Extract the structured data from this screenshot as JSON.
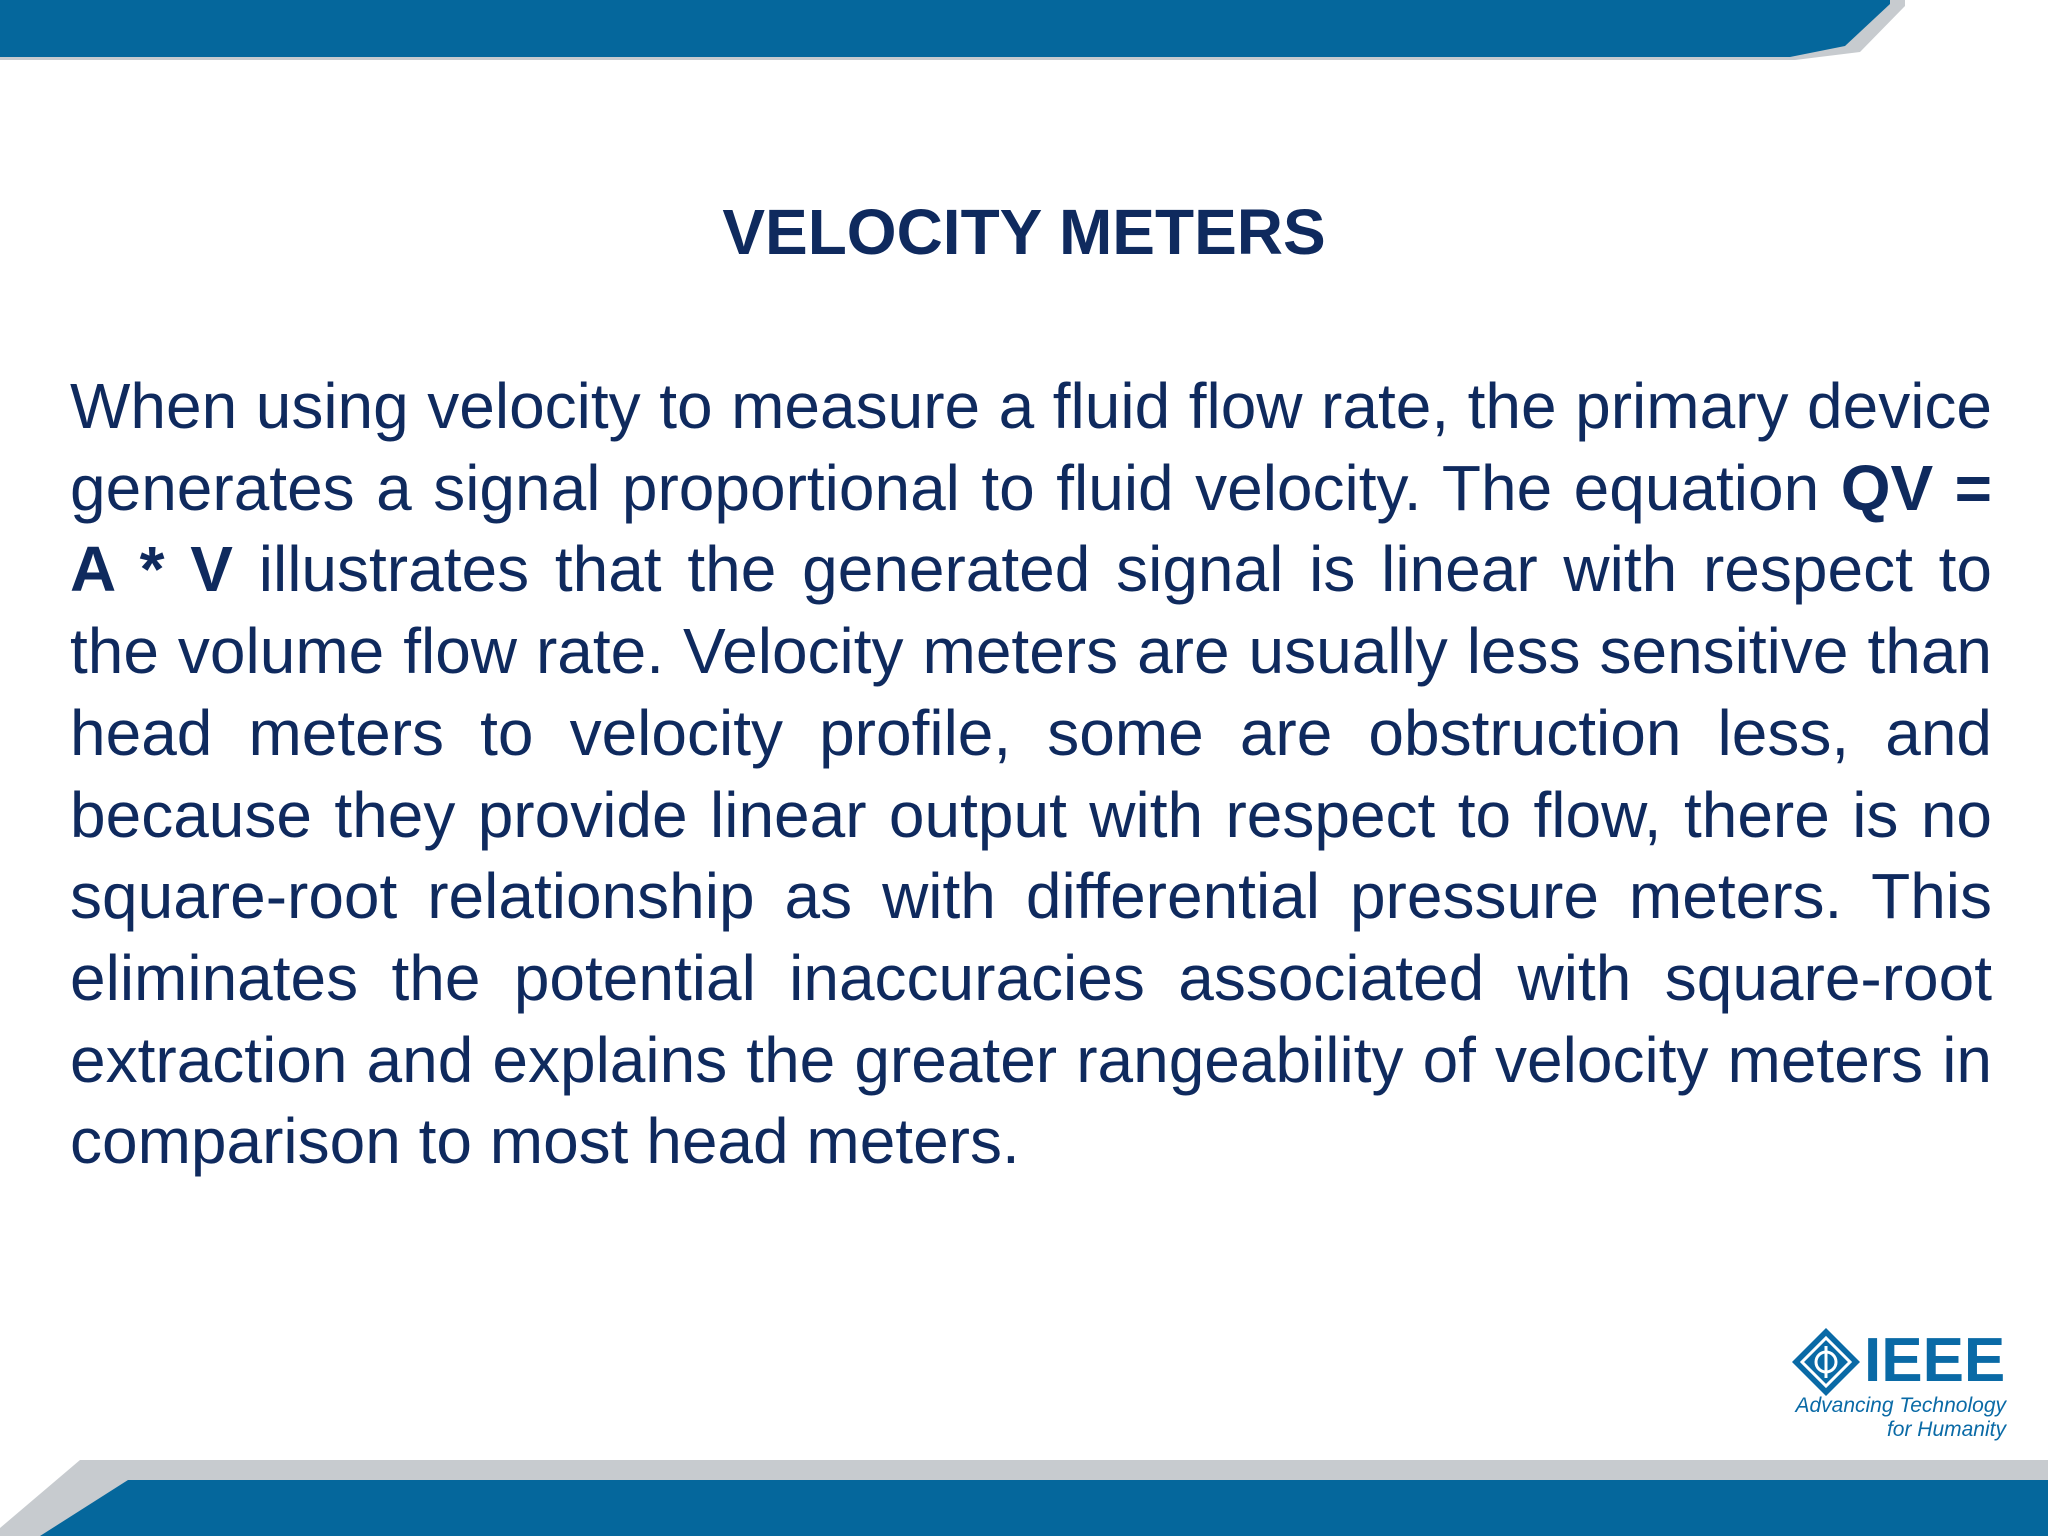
{
  "slide": {
    "title": "VELOCITY METERS",
    "body": {
      "before_equation": "When using velocity to measure a fluid flow rate, the primary device generates a signal proportional to fluid velocity. The equation ",
      "equation": "QV = A * V",
      "after_equation": " illustrates that the generated signal is linear with respect to the volume flow rate. Velocity meters are usually less sensitive than head meters to velocity profile, some are obstruction less, and because they provide linear output with respect to flow, there is no square-root relationship as with differential pressure meters. This eliminates the potential inaccuracies associated with square-root extraction and explains the greater rangeability of velocity meters in comparison to most head meters."
    }
  },
  "logo": {
    "wordmark": "IEEE",
    "tagline_line1": "Advancing Technology",
    "tagline_line2": "for Humanity"
  },
  "colors": {
    "band_blue": "#05679c",
    "band_gray": "#c7cbcf",
    "text_navy": "#0f2a5e",
    "logo_blue": "#0a6aa6"
  }
}
